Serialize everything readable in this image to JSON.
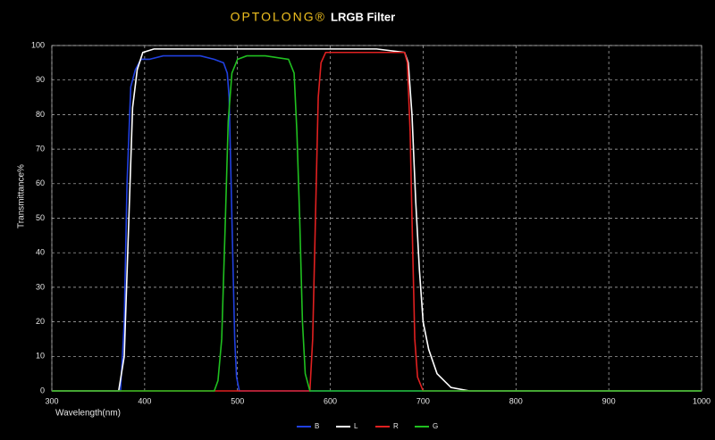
{
  "chart_data": {
    "type": "line",
    "brand": "OPTOLONG®",
    "title": "LRGB Filter",
    "x_label": "Wavelength(nm)",
    "y_label": "Transmittance%",
    "xlim": [
      300,
      1000
    ],
    "xticks": [
      300,
      400,
      500,
      600,
      700,
      800,
      900,
      1000
    ],
    "ylim": [
      0,
      100
    ],
    "yticks": [
      0,
      10,
      20,
      30,
      40,
      50,
      60,
      70,
      80,
      90,
      100
    ],
    "grid": true,
    "legend": "bottom",
    "series": [
      {
        "name": "B",
        "color": "#2040e0",
        "x": [
          300,
          374,
          378,
          381,
          385,
          390,
          396,
          405,
          420,
          440,
          460,
          475,
          485,
          489,
          491,
          494,
          497,
          499,
          502,
          520,
          1000
        ],
        "values": [
          0,
          0,
          20,
          60,
          88,
          93,
          96,
          96,
          97,
          97,
          97,
          96,
          95,
          92,
          85,
          50,
          15,
          4,
          0,
          0,
          0
        ]
      },
      {
        "name": "L",
        "color": "#ffffff",
        "x": [
          300,
          372,
          378,
          383,
          387,
          392,
          398,
          410,
          450,
          500,
          550,
          600,
          650,
          680,
          684,
          688,
          692,
          696,
          700,
          706,
          715,
          730,
          750,
          1000
        ],
        "values": [
          0,
          0,
          10,
          50,
          82,
          93,
          98,
          99,
          99,
          99,
          99,
          99,
          99,
          98,
          95,
          80,
          55,
          35,
          20,
          12,
          5,
          1,
          0,
          0
        ]
      },
      {
        "name": "R",
        "color": "#e02020",
        "x": [
          300,
          578,
          581,
          584,
          587,
          590,
          595,
          620,
          650,
          680,
          683,
          686,
          688,
          691,
          694,
          700,
          1000
        ],
        "values": [
          0,
          0,
          15,
          50,
          85,
          95,
          98,
          98,
          98,
          98,
          95,
          75,
          50,
          15,
          4,
          0,
          0
        ]
      },
      {
        "name": "G",
        "color": "#20c020",
        "x": [
          300,
          475,
          479,
          483,
          487,
          490,
          494,
          500,
          510,
          530,
          555,
          561,
          564,
          567,
          570,
          573,
          578,
          1000
        ],
        "values": [
          0,
          0,
          3,
          15,
          50,
          78,
          92,
          96,
          97,
          97,
          96,
          92,
          75,
          50,
          20,
          5,
          0,
          0
        ]
      }
    ]
  }
}
